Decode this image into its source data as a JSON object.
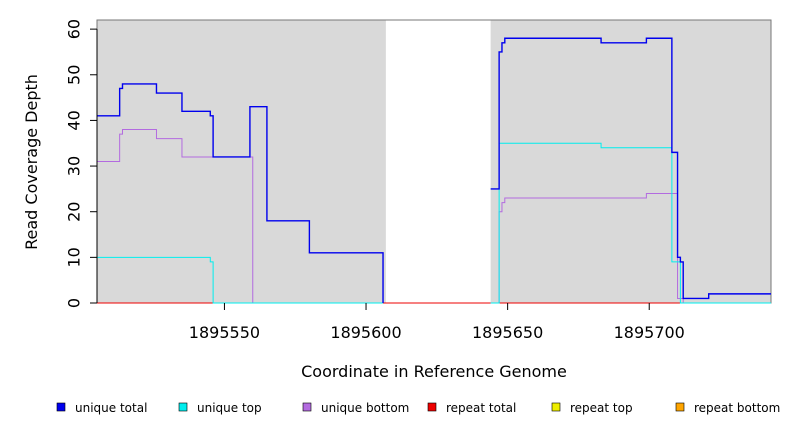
{
  "chart_data": {
    "type": "line",
    "xlabel": "Coordinate in Reference Genome",
    "ylabel": "Read Coverage Depth",
    "xlim": [
      1895505,
      1895743
    ],
    "ylim": [
      0,
      62
    ],
    "x_ticks": [
      1895550,
      1895600,
      1895650,
      1895700
    ],
    "x_tick_labels": [
      "1895550",
      "1895600",
      "1895650",
      "1895700"
    ],
    "y_ticks": [
      0,
      10,
      20,
      30,
      40,
      50,
      60
    ],
    "y_tick_labels": [
      "0",
      "10",
      "20",
      "30",
      "40",
      "50",
      "60"
    ],
    "shaded_regions": [
      {
        "x0": 1895505,
        "x1": 1895607
      },
      {
        "x0": 1895644,
        "x1": 1895743
      }
    ],
    "legend_position": "bottom",
    "series": [
      {
        "name": "unique total",
        "color": "#0000ee",
        "steps": [
          [
            [
              1895505,
              41
            ],
            [
              1895513,
              47
            ],
            [
              1895514,
              48
            ],
            [
              1895526,
              46
            ],
            [
              1895535,
              42
            ],
            [
              1895545,
              41
            ],
            [
              1895546,
              32
            ],
            [
              1895559,
              43
            ],
            [
              1895565,
              18
            ],
            [
              1895580,
              11
            ],
            [
              1895606,
              0
            ]
          ],
          [
            [
              1895644,
              25
            ],
            [
              1895647,
              55
            ],
            [
              1895648,
              57
            ],
            [
              1895649,
              58
            ],
            [
              1895683,
              57
            ],
            [
              1895699,
              58
            ],
            [
              1895708,
              33
            ],
            [
              1895710,
              10
            ],
            [
              1895711,
              9
            ],
            [
              1895712,
              1
            ],
            [
              1895721,
              2
            ],
            [
              1895743,
              2
            ]
          ]
        ]
      },
      {
        "name": "unique top",
        "color": "#00eeee",
        "steps": [
          [
            [
              1895505,
              10
            ],
            [
              1895545,
              9
            ],
            [
              1895546,
              0
            ],
            [
              1895606,
              0
            ]
          ],
          [
            [
              1895644,
              0
            ],
            [
              1895647,
              35
            ],
            [
              1895683,
              34
            ],
            [
              1895708,
              9
            ],
            [
              1895711,
              0
            ],
            [
              1895743,
              0
            ]
          ]
        ]
      },
      {
        "name": "unique bottom",
        "color": "#b36be0",
        "steps": [
          [
            [
              1895505,
              31
            ],
            [
              1895513,
              37
            ],
            [
              1895514,
              38
            ],
            [
              1895526,
              36
            ],
            [
              1895535,
              32
            ],
            [
              1895546,
              32
            ],
            [
              1895560,
              0
            ],
            [
              1895606,
              0
            ]
          ],
          [
            [
              1895644,
              0
            ],
            [
              1895647,
              20
            ],
            [
              1895648,
              22
            ],
            [
              1895649,
              23
            ],
            [
              1895699,
              24
            ],
            [
              1895710,
              1
            ],
            [
              1895712,
              0
            ],
            [
              1895743,
              0
            ]
          ]
        ]
      },
      {
        "name": "repeat total",
        "color": "#ee0000",
        "steps": [
          [
            [
              1895505,
              0
            ],
            [
              1895743,
              0
            ]
          ]
        ]
      },
      {
        "name": "repeat top",
        "color": "#eeee00",
        "steps": [
          [
            [
              1895505,
              0
            ],
            [
              1895743,
              0
            ]
          ]
        ]
      },
      {
        "name": "repeat bottom",
        "color": "#ffa500",
        "steps": [
          [
            [
              1895505,
              0
            ],
            [
              1895743,
              0
            ]
          ]
        ]
      }
    ]
  }
}
